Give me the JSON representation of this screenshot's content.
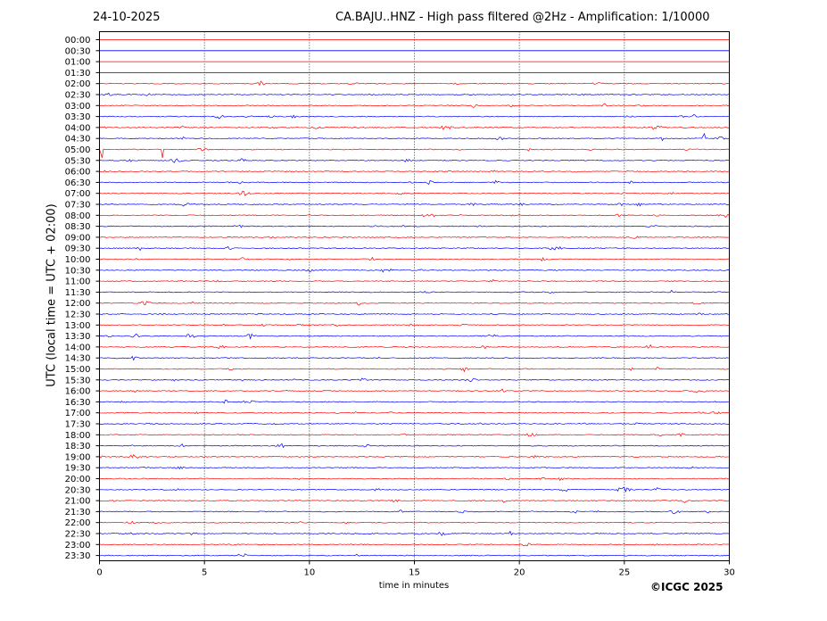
{
  "header": {
    "date": "24-10-2025",
    "title": "CA.BAJU..HNZ - High pass filtered @2Hz - Amplification: 1/10000"
  },
  "footer": {
    "copyright": "©ICGC 2025"
  },
  "chart_data": {
    "type": "line",
    "subtype": "helicorder",
    "xlabel": "time in minutes",
    "ylabel": "UTC (local time = UTC + 02:00)",
    "xlim": [
      0,
      30
    ],
    "xticks": [
      0,
      5,
      10,
      15,
      20,
      25,
      30
    ],
    "vertical_gridlines_at": [
      5,
      10,
      15,
      20,
      25
    ],
    "rows": [
      "00:00",
      "00:30",
      "01:00",
      "01:30",
      "02:00",
      "02:30",
      "03:00",
      "03:30",
      "04:00",
      "04:30",
      "05:00",
      "05:30",
      "06:00",
      "06:30",
      "07:00",
      "07:30",
      "08:00",
      "08:30",
      "09:00",
      "09:30",
      "10:00",
      "10:30",
      "11:00",
      "11:30",
      "12:00",
      "12:30",
      "13:00",
      "13:30",
      "14:00",
      "14:30",
      "15:00",
      "15:30",
      "16:00",
      "16:30",
      "17:00",
      "17:30",
      "18:00",
      "18:30",
      "19:00",
      "19:30",
      "20:00",
      "20:30",
      "21:00",
      "21:30",
      "22:00",
      "22:30",
      "23:00",
      "23:30"
    ],
    "row_colors": [
      "#ff0000",
      "#0000ff"
    ],
    "trace_start_row": 4,
    "notable_events": [
      {
        "row": "04:30",
        "minute": 26.8,
        "color": "#0000ff"
      },
      {
        "row": "04:30",
        "minute": 28.8,
        "color": "#0000ff"
      },
      {
        "row": "05:00",
        "minute": 3.0,
        "color": "#ff0000"
      },
      {
        "row": "05:00",
        "minute": 0.1,
        "color": "#ff0000"
      }
    ]
  }
}
